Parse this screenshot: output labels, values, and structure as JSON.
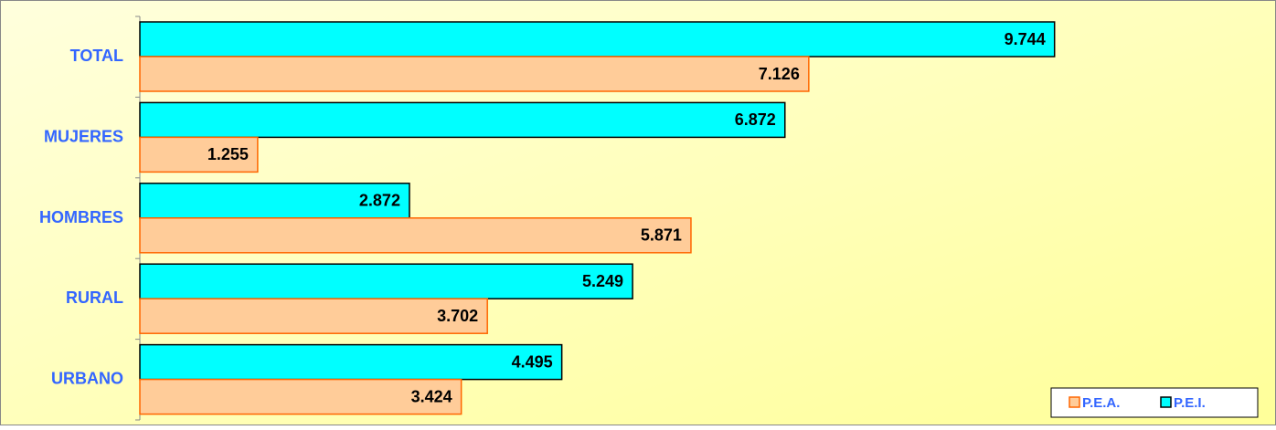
{
  "chart_data": {
    "type": "bar",
    "orientation": "horizontal",
    "categories": [
      "TOTAL",
      "MUJERES",
      "HOMBRES",
      "RURAL",
      "URBANO"
    ],
    "series": [
      {
        "name": "P.E.I.",
        "color": "#00ffff",
        "values": [
          9.744,
          6.872,
          2.872,
          5.249,
          4.495
        ]
      },
      {
        "name": "P.E.A.",
        "color": "#ffcc99",
        "values": [
          7.126,
          1.255,
          5.871,
          3.702,
          3.424
        ]
      }
    ],
    "legend": "lower right"
  }
}
